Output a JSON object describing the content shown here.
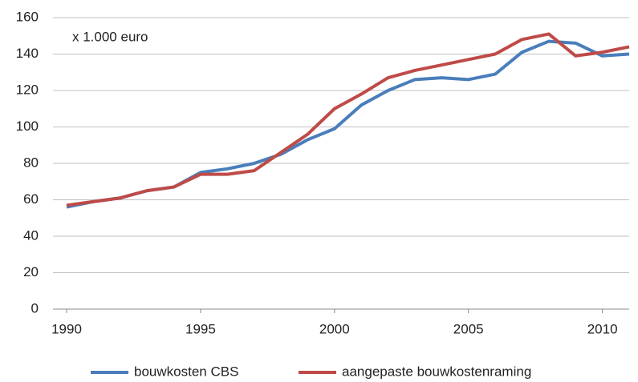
{
  "chart_data": {
    "type": "line",
    "annotation": "x 1.000 euro",
    "x": [
      1990,
      1991,
      1992,
      1993,
      1994,
      1995,
      1996,
      1997,
      1998,
      1999,
      2000,
      2001,
      2002,
      2003,
      2004,
      2005,
      2006,
      2007,
      2008,
      2009,
      2010,
      2011
    ],
    "series": [
      {
        "name": "bouwkosten CBS",
        "color": "#4a7ebb",
        "values": [
          56,
          59,
          61,
          65,
          67,
          75,
          77,
          80,
          85,
          93,
          99,
          112,
          120,
          126,
          127,
          126,
          129,
          141,
          147,
          146,
          139,
          140
        ]
      },
      {
        "name": "aangepaste bouwkostenraming",
        "color": "#be4b48",
        "values": [
          57,
          59,
          61,
          65,
          67,
          74,
          74,
          76,
          86,
          96,
          110,
          118,
          127,
          131,
          134,
          137,
          140,
          148,
          151,
          139,
          141,
          144
        ]
      }
    ],
    "xlim": [
      1990,
      2011
    ],
    "xticks": [
      1990,
      1995,
      2000,
      2005,
      2010
    ],
    "ylim": [
      0,
      160
    ],
    "yticks": [
      0,
      20,
      40,
      60,
      80,
      100,
      120,
      140,
      160
    ],
    "grid": true,
    "legend": "bottom"
  }
}
